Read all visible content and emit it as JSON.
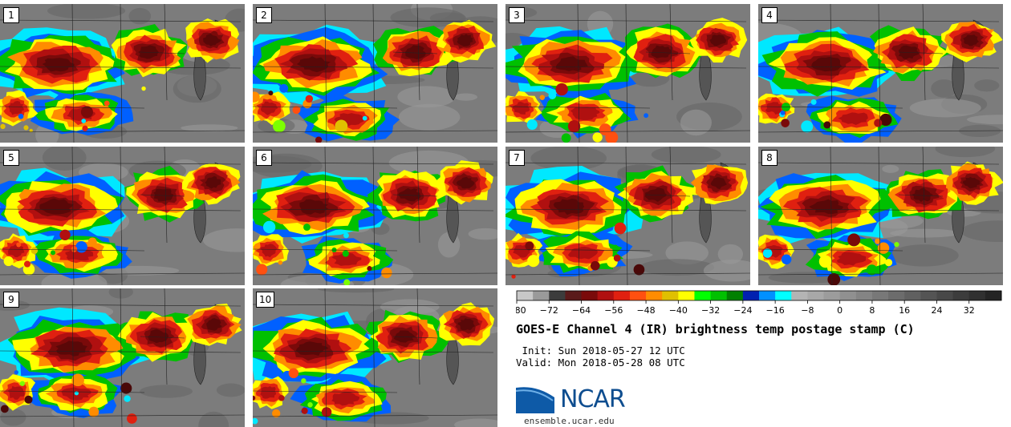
{
  "panels": [
    {
      "label": "1"
    },
    {
      "label": "2"
    },
    {
      "label": "3"
    },
    {
      "label": "4"
    },
    {
      "label": "5"
    },
    {
      "label": "6"
    },
    {
      "label": "7"
    },
    {
      "label": "8"
    },
    {
      "label": "9"
    },
    {
      "label": "10"
    }
  ],
  "colorbar": {
    "ticks": [
      "−80",
      "−72",
      "−64",
      "−56",
      "−48",
      "−40",
      "−32",
      "−24",
      "−16",
      "−8",
      "0",
      "8",
      "16",
      "24",
      "32"
    ],
    "colors": [
      "#c8c8c8",
      "#9a9a9a",
      "#3c3c3c",
      "#5a1a1a",
      "#7a0a0a",
      "#b01010",
      "#e02010",
      "#ff5010",
      "#ff8c00",
      "#e0c000",
      "#ffff00",
      "#00ff00",
      "#00c000",
      "#008000",
      "#0020b0",
      "#0090ff",
      "#00ffff",
      "#b4b4b4",
      "#a8a8a8",
      "#9c9c9c",
      "#909090",
      "#848484",
      "#787878",
      "#6c6c6c",
      "#606060",
      "#545454",
      "#484848",
      "#3c3c3c",
      "#303030",
      "#242424"
    ]
  },
  "title": "GOES-E Channel 4 (IR) brightness temp postage stamp (C)",
  "init_line": " Init: Sun 2018-05-27 12 UTC",
  "valid_line": "Valid: Mon 2018-05-28 08 UTC",
  "logo_text": "NCAR",
  "url": "ensemble.ucar.edu"
}
